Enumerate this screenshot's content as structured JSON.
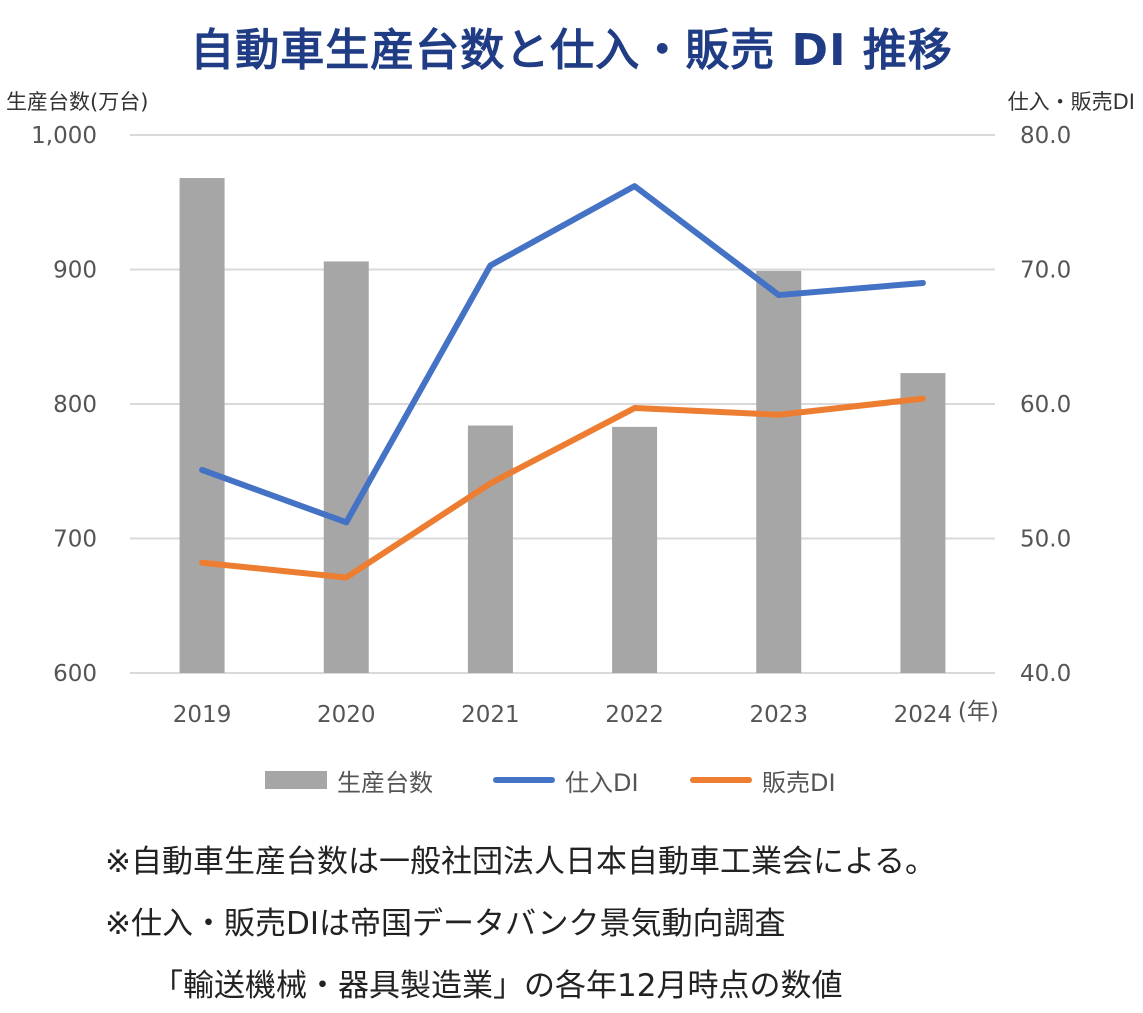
{
  "title": "自動車生産台数と仕入・販売 DI 推移",
  "left_axis_caption": "生産台数(万台)",
  "right_axis_caption": "仕入・販売DI",
  "notes": [
    "※自動車生産台数は一般社団法人日本自動車工業会による。",
    "※仕入・販売DIは帝国データバンク景気動向調査",
    "「輸送機械・器具製造業」の各年12月時点の数値"
  ],
  "colors": {
    "bar": "#a6a6a6",
    "purchase": "#4472c4",
    "sales": "#ed7d31",
    "grid": "#d9d9d9",
    "title": "#1f3c84"
  },
  "chart_data": {
    "type": "bar",
    "categories": [
      "2019",
      "2020",
      "2021",
      "2022",
      "2023",
      "2024"
    ],
    "x_unit_label": "(年)",
    "y_left": {
      "ylim": [
        600,
        1000
      ],
      "ticks": [
        "600",
        "700",
        "800",
        "900",
        "1,000"
      ]
    },
    "y_right": {
      "ylim": [
        40,
        80
      ],
      "ticks": [
        "40.0",
        "50.0",
        "60.0",
        "70.0",
        "80.0"
      ]
    },
    "series": [
      {
        "name": "生産台数",
        "type": "bar",
        "axis": "left",
        "values": [
          968,
          906,
          784,
          783,
          899,
          823
        ]
      },
      {
        "name": "仕入DI",
        "type": "line",
        "axis": "right",
        "values": [
          55.1,
          51.2,
          70.3,
          76.2,
          68.1,
          69.0
        ]
      },
      {
        "name": "販売DI",
        "type": "line",
        "axis": "right",
        "values": [
          48.2,
          47.1,
          54.1,
          59.7,
          59.2,
          60.4
        ]
      }
    ],
    "grid": true,
    "legend_position": "bottom"
  }
}
